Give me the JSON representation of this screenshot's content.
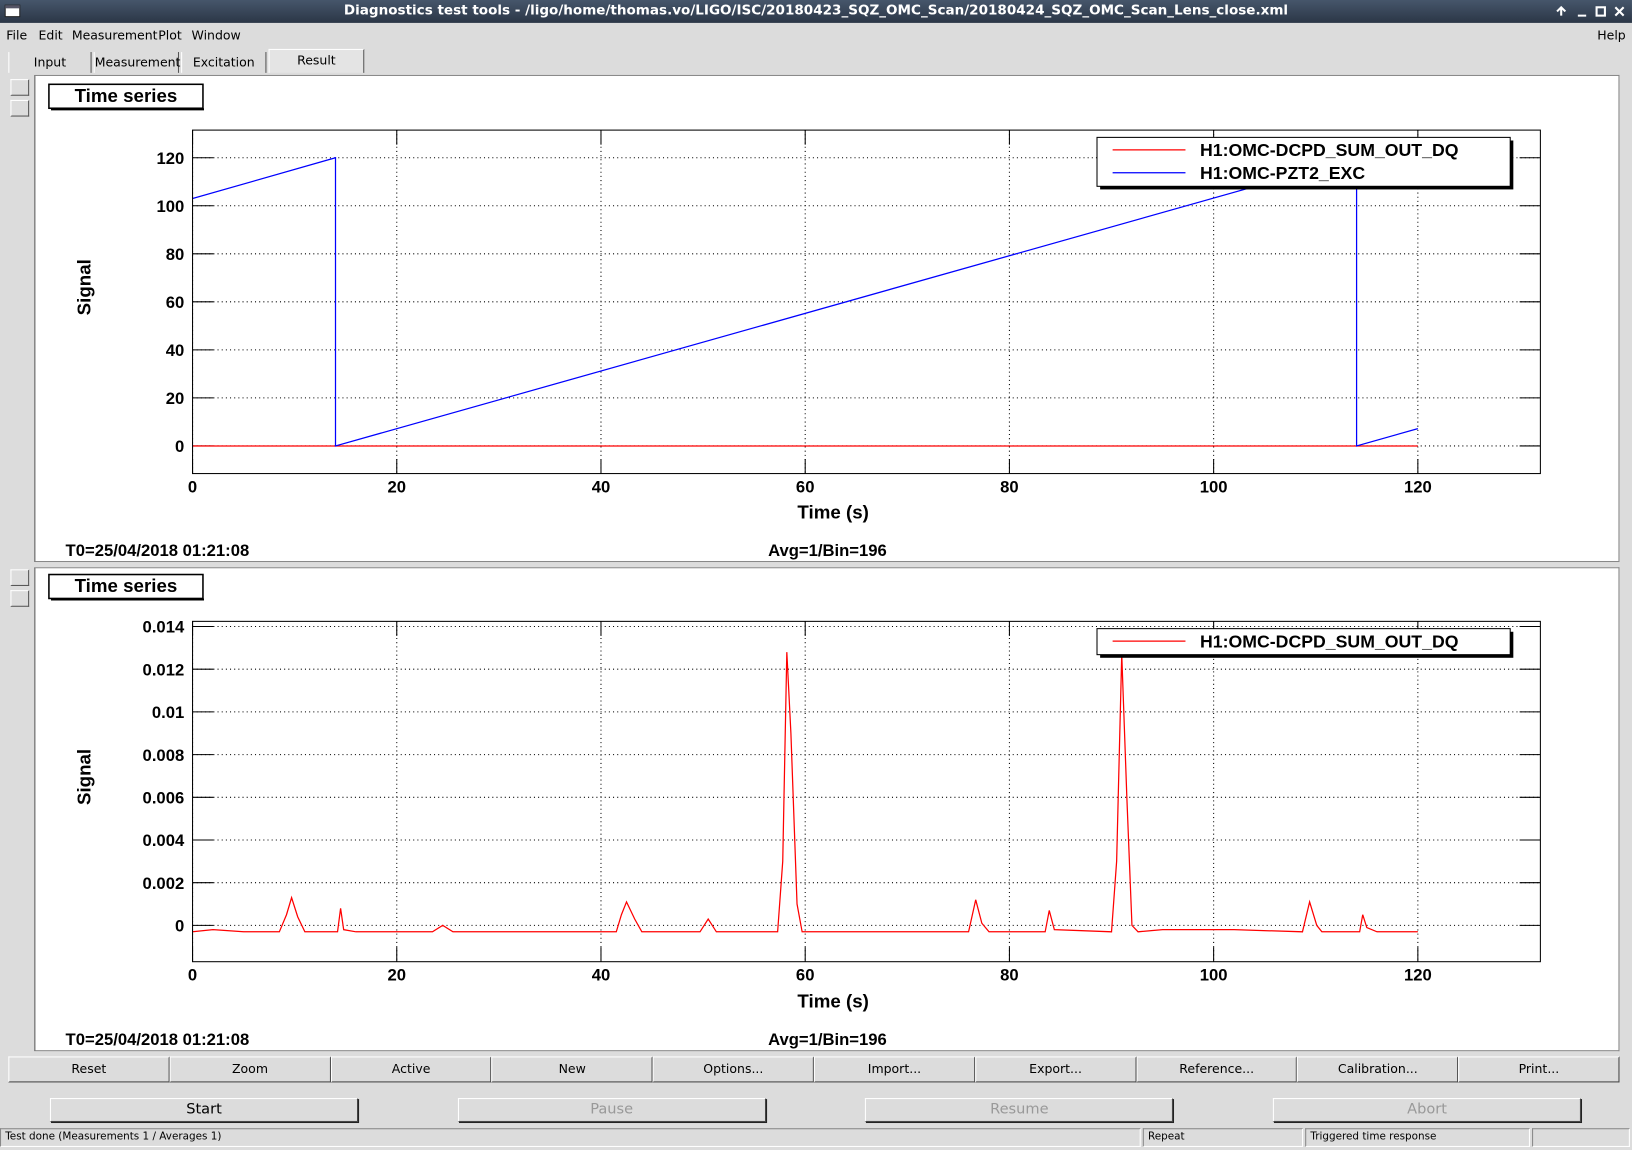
{
  "window": {
    "title": "Diagnostics test tools - /ligo/home/thomas.vo/LIGO/ISC/20180423_SQZ_OMC_Scan/20180424_SQZ_OMC_Scan_Lens_close.xml"
  },
  "menu": [
    "File",
    "Edit",
    "Measurement",
    "Plot",
    "Window"
  ],
  "help": "Help",
  "tabs": [
    "Input",
    "Measurement",
    "Excitation",
    "Result"
  ],
  "chart_data": [
    {
      "type": "line",
      "title": "Time series",
      "xlabel": "Time (s)",
      "ylabel": "Signal",
      "notes": [
        "T0=25/04/2018 01:21:08",
        "Avg=1/Bin=196"
      ],
      "xlim": [
        0,
        132
      ],
      "ylim": [
        -11.5,
        131.5
      ],
      "xticks": [
        0,
        20,
        40,
        60,
        80,
        100,
        120
      ],
      "yticks": [
        0,
        20,
        40,
        60,
        80,
        100,
        120
      ],
      "grid": true,
      "legend": "top-right",
      "series": [
        {
          "name": "H1:OMC-DCPD_SUM_OUT_DQ",
          "color": "#ff0000",
          "x": [
            0,
            120
          ],
          "values": [
            0,
            0
          ]
        },
        {
          "name": "H1:OMC-PZT2_EXC",
          "color": "#0000ff",
          "x": [
            0,
            14,
            14,
            114,
            114,
            120
          ],
          "values": [
            103,
            120,
            0,
            120,
            0,
            7.2
          ]
        }
      ]
    },
    {
      "type": "line",
      "title": "Time series",
      "xlabel": "Time (s)",
      "ylabel": "Signal",
      "notes": [
        "T0=25/04/2018 01:21:08",
        "Avg=1/Bin=196"
      ],
      "xlim": [
        0,
        132
      ],
      "ylim": [
        -0.0017,
        0.01424
      ],
      "xticks": [
        0,
        20,
        40,
        60,
        80,
        100,
        120
      ],
      "yticks": [
        0,
        0.002,
        0.004,
        0.006,
        0.008,
        0.01,
        0.012,
        0.014
      ],
      "grid": true,
      "legend": "top-right",
      "series": [
        {
          "name": "H1:OMC-DCPD_SUM_OUT_DQ",
          "color": "#ff0000",
          "x": [
            0,
            2,
            5,
            8.5,
            9.2,
            9.7,
            10.3,
            11,
            14.2,
            14.5,
            14.8,
            16,
            23.5,
            24.5,
            25.5,
            41.5,
            42,
            42.5,
            43.3,
            44,
            49.7,
            50.5,
            51.3,
            57.3,
            57.8,
            58.2,
            58.6,
            59.2,
            59.7,
            76,
            76.7,
            77.3,
            78,
            83.5,
            83.9,
            84.4,
            90,
            90.5,
            91,
            91.5,
            92,
            92.6,
            95,
            102,
            108.7,
            109.4,
            110.1,
            110.6,
            114.3,
            114.6,
            115,
            116,
            120
          ],
          "values": [
            -0.0003,
            -0.0002,
            -0.0003,
            -0.0003,
            0.0005,
            0.0013,
            0.0004,
            -0.0003,
            -0.0003,
            0.0008,
            -0.0002,
            -0.0003,
            -0.0003,
            0,
            -0.0003,
            -0.0003,
            0.0005,
            0.0011,
            0.0003,
            -0.0003,
            -0.0003,
            0.0003,
            -0.0003,
            -0.0003,
            0.003,
            0.0128,
            0.009,
            0.001,
            -0.0003,
            -0.0003,
            0.0012,
            0.0001,
            -0.0003,
            -0.0003,
            0.0007,
            -0.0002,
            -0.0003,
            0.003,
            0.0127,
            0.006,
            0,
            -0.0003,
            -0.0002,
            -0.0002,
            -0.0003,
            0.0011,
            0,
            -0.0003,
            -0.0003,
            0.0005,
            -0.0001,
            -0.0003,
            -0.0003
          ]
        }
      ]
    }
  ],
  "toolbar": [
    "Reset",
    "Zoom",
    "Active",
    "New",
    "Options...",
    "Import...",
    "Export...",
    "Reference...",
    "Calibration...",
    "Print..."
  ],
  "controls": [
    {
      "label": "Start",
      "enabled": true
    },
    {
      "label": "Pause",
      "enabled": false
    },
    {
      "label": "Resume",
      "enabled": false
    },
    {
      "label": "Abort",
      "enabled": false
    }
  ],
  "status": [
    "Test done (Measurements 1 / Averages 1)",
    "Repeat",
    "Triggered time response"
  ]
}
